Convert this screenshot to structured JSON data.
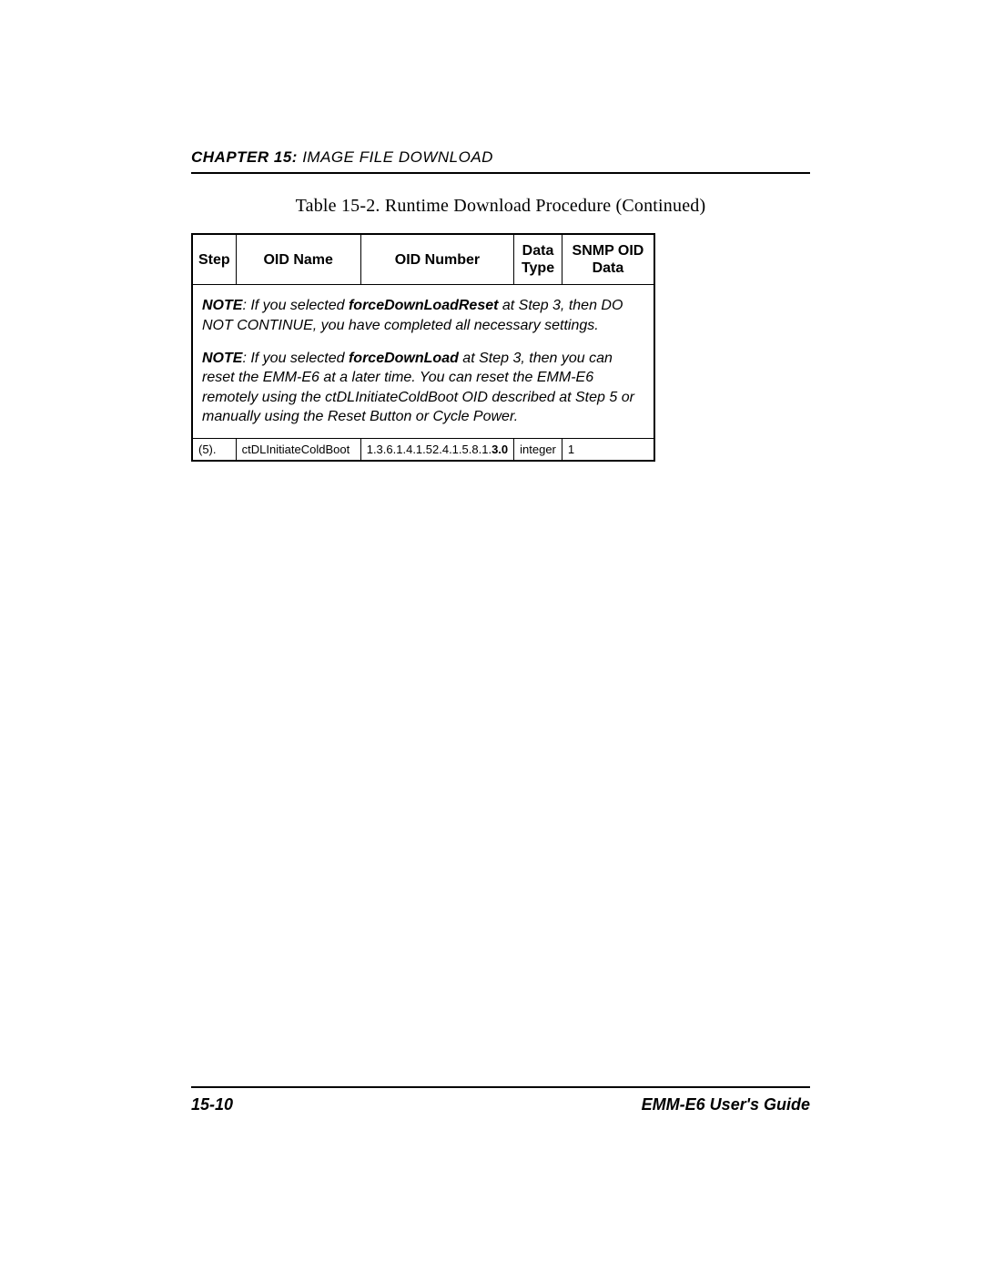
{
  "header": {
    "chapter_label": "CHAPTER 15:",
    "chapter_title": " IMAGE FILE DOWNLOAD"
  },
  "caption": "Table 15-2.  Runtime Download Procedure (Continued)",
  "table": {
    "columns": {
      "step": "Step",
      "oid_name": "OID Name",
      "oid_number": "OID Number",
      "data_type": "Data Type",
      "snmp_oid_data": "SNMP OID Data"
    },
    "note1": {
      "label": "NOTE",
      "text_pre": ": If you selected ",
      "bold1": "forceDownLoadReset",
      "text_post": " at Step 3, then DO NOT CONTINUE, you have completed all necessary settings."
    },
    "note2": {
      "label": "NOTE",
      "text_pre": ": If you selected ",
      "bold1": "forceDownLoad",
      "text_post": " at Step 3, then you can reset the EMM-E6 at a later time. You can reset the EMM-E6 remotely using the ctDLInitiateColdBoot OID described at Step 5 or manually using the Reset Button or Cycle Power."
    },
    "row": {
      "step": "(5).",
      "oid_name": "ctDLInitiateColdBoot",
      "oid_number_prefix": "1.3.6.1.4.1.52.4.1.5.8.1.",
      "oid_number_suffix": "3.0",
      "data_type": "integer",
      "snmp_oid_data": "1"
    }
  },
  "footer": {
    "page_number": "15-10",
    "guide_title": "EMM-E6 User's Guide"
  }
}
